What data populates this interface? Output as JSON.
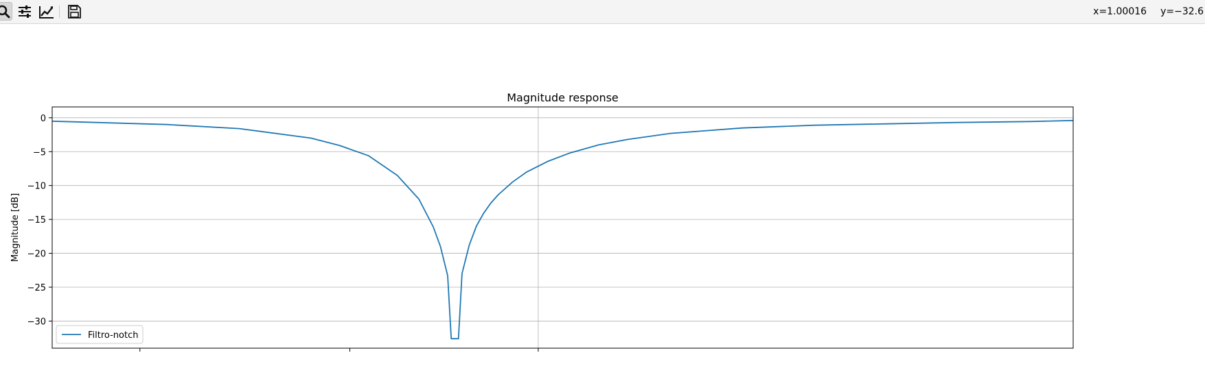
{
  "toolbar": {
    "buttons": [
      {
        "name": "zoom-button",
        "icon": "magnifier-icon",
        "active": true
      },
      {
        "name": "subplot-config-button",
        "icon": "sliders-icon",
        "active": false
      },
      {
        "name": "edit-axis-button",
        "icon": "line-chart-icon",
        "active": false
      },
      {
        "name": "save-button",
        "icon": "floppy-disk-icon",
        "active": false
      }
    ],
    "coords": {
      "x": "x=1.00016",
      "y": "y=−32.6"
    }
  },
  "chart_data": {
    "type": "line",
    "title": "Magnitude response",
    "xlabel": "",
    "ylabel": "Magnitude [dB]",
    "xlim": [
      0.72,
      1.43
    ],
    "ylim": [
      -34,
      1.6
    ],
    "yticks": [
      0,
      -5,
      -10,
      -15,
      -20,
      -25,
      -30
    ],
    "ytick_labels": [
      "0",
      "−5",
      "−10",
      "−15",
      "−20",
      "−25",
      "−30"
    ],
    "xticks": [
      0.781,
      0.927,
      1.058
    ],
    "grid": true,
    "legend": {
      "placement": "lower-left"
    },
    "series": [
      {
        "name": "Filtro-notch",
        "color": "#1f77b4",
        "x": [
          0.72,
          0.8,
          0.85,
          0.9,
          0.92,
          0.94,
          0.96,
          0.975,
          0.985,
          0.99,
          0.995,
          0.9975,
          1.0,
          1.0025,
          1.005,
          1.01,
          1.015,
          1.02,
          1.025,
          1.03,
          1.04,
          1.05,
          1.065,
          1.08,
          1.1,
          1.12,
          1.15,
          1.2,
          1.25,
          1.3,
          1.35,
          1.4,
          1.43
        ],
        "y": [
          -0.5,
          -1.0,
          -1.6,
          -3.0,
          -4.1,
          -5.6,
          -8.5,
          -12.0,
          -16.1,
          -19.0,
          -23.3,
          -32.6,
          -32.6,
          -32.6,
          -23.0,
          -18.8,
          -16.0,
          -14.1,
          -12.6,
          -11.4,
          -9.5,
          -8.0,
          -6.4,
          -5.2,
          -4.0,
          -3.2,
          -2.3,
          -1.5,
          -1.1,
          -0.9,
          -0.7,
          -0.55,
          -0.4
        ]
      }
    ]
  }
}
